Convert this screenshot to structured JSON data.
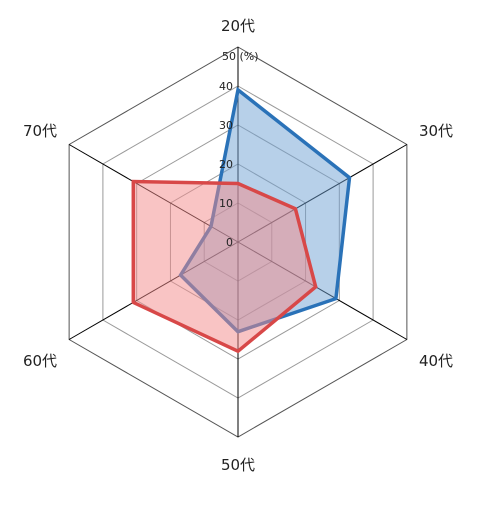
{
  "chart_data": {
    "type": "radar",
    "categories": [
      "20代",
      "30代",
      "40代",
      "50代",
      "60代",
      "70代"
    ],
    "rlim": [
      0,
      50
    ],
    "ticks": [
      "0",
      "10",
      "20",
      "30",
      "40",
      "50 (%)"
    ],
    "grid": true,
    "series": [
      {
        "color": "#2a72b8",
        "fill": "#6fa2d4",
        "values": [
          39,
          33,
          29,
          23,
          17,
          8
        ]
      },
      {
        "color": "#d84848",
        "fill": "#f38a8a",
        "values": [
          15,
          17,
          23,
          28,
          31,
          31
        ]
      }
    ]
  }
}
